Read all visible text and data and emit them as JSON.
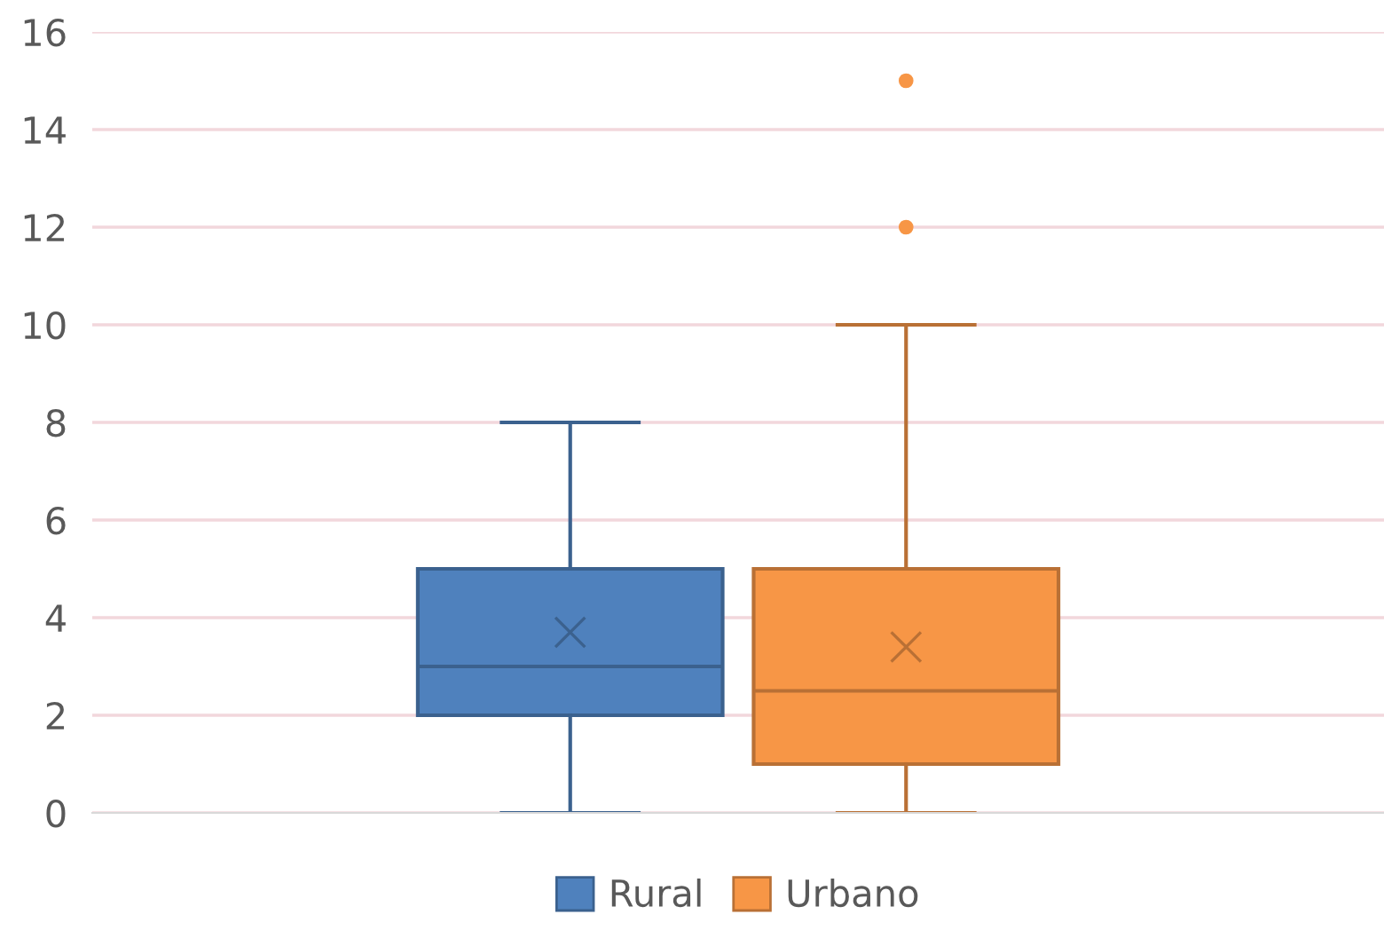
{
  "chart_data": {
    "type": "box",
    "categories": [
      null
    ],
    "ylim": [
      0,
      16
    ],
    "yticks": [
      0,
      2,
      4,
      6,
      8,
      10,
      12,
      14,
      16
    ],
    "grid": "y",
    "legend": "bottom",
    "marker": "circle",
    "series": [
      {
        "name": "Rural",
        "color": "#4f81bd",
        "boxes": [
          {
            "low": 0,
            "q1": 2,
            "median": 3,
            "q3": 5,
            "high": 8,
            "mean": 3.7
          }
        ]
      },
      {
        "name": "Urbano",
        "color": "#f79646",
        "boxes": [
          {
            "low": 0,
            "q1": 1,
            "median": 2.5,
            "q3": 5,
            "high": 10,
            "mean": 3.4,
            "outliers": [
              12,
              15
            ]
          }
        ]
      }
    ]
  }
}
